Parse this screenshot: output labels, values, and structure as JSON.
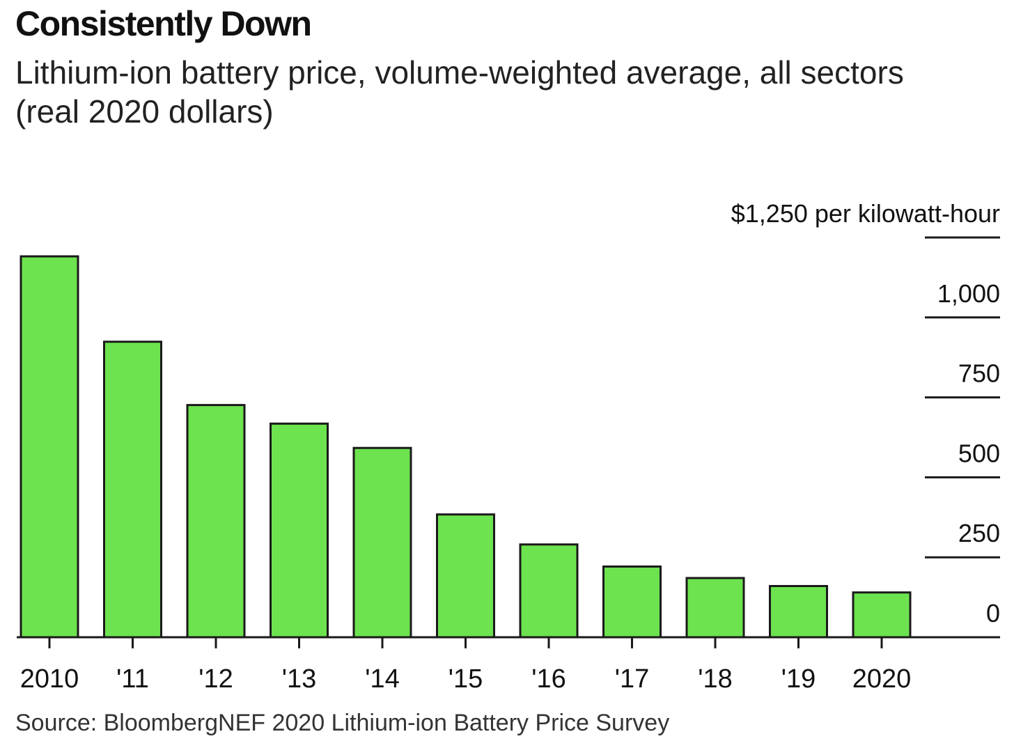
{
  "title": "Consistently Down",
  "subtitle": "Lithium-ion battery price, volume-weighted average, all sectors (real 2020 dollars)",
  "source": "Source: BloombergNEF 2020 Lithium-ion Battery Price Survey",
  "colors": {
    "bar_fill": "#6de34f",
    "bar_stroke": "#1a1a1a",
    "axis": "#1a1a1a",
    "text": "#111111"
  },
  "chart_data": {
    "type": "bar",
    "categories": [
      "2010",
      "'11",
      "'12",
      "'13",
      "'14",
      "'15",
      "'16",
      "'17",
      "'18",
      "'19",
      "2020"
    ],
    "values": [
      1191,
      924,
      726,
      668,
      592,
      384,
      290,
      221,
      185,
      160,
      140
    ],
    "ylim": [
      0,
      1250
    ],
    "y_ticks": [
      0,
      250,
      500,
      750,
      1000,
      1250
    ],
    "y_tick_labels": [
      "0",
      "250",
      "500",
      "750",
      "1,000",
      "$1,250 per kilowatt-hour"
    ],
    "y_axis_position": "right",
    "grid": false,
    "legend": "none"
  }
}
